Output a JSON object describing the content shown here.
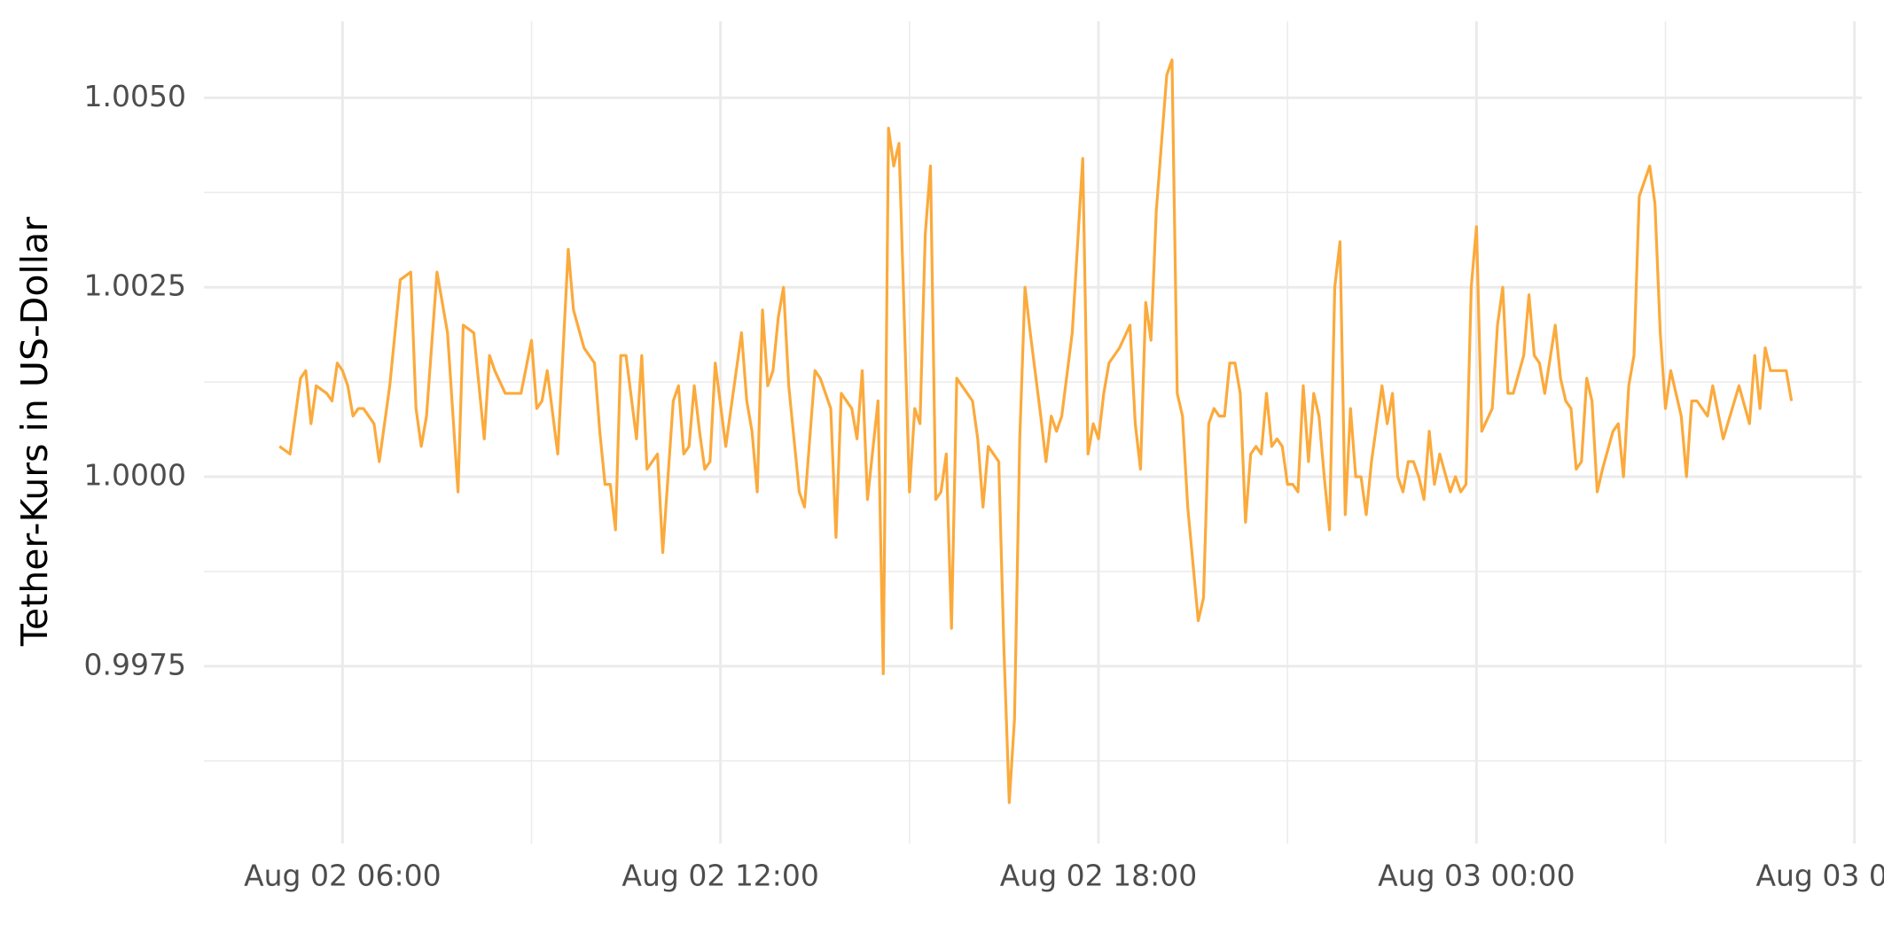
{
  "chart_data": {
    "type": "line",
    "y_label": "Tether-Kurs in US-Dollar",
    "color": "#fbaa3c",
    "grid": true,
    "xlim": [
      "Aug 02 03:48",
      "Aug 03 06:07"
    ],
    "xticks": [
      "Aug 02 06:00",
      "Aug 02 12:00",
      "Aug 02 18:00",
      "Aug 03 00:00",
      "Aug 03 06:00"
    ],
    "ylim": [
      0.99516,
      1.00601
    ],
    "yticks": [
      {
        "value": 0.9975,
        "label": "0.9975"
      },
      {
        "value": 1,
        "label": "1.0000"
      },
      {
        "value": 1.0025,
        "label": "1.0025"
      },
      {
        "value": 1.005,
        "label": "1.0050"
      }
    ],
    "x": [
      "Aug 02 05:00",
      "Aug 02 05:10",
      "Aug 02 05:20",
      "Aug 02 05:25",
      "Aug 02 05:30",
      "Aug 02 05:35",
      "Aug 02 05:45",
      "Aug 02 05:50",
      "Aug 02 05:55",
      "Aug 02 06:00",
      "Aug 02 06:05",
      "Aug 02 06:10",
      "Aug 02 06:15",
      "Aug 02 06:20",
      "Aug 02 06:30",
      "Aug 02 06:35",
      "Aug 02 06:45",
      "Aug 02 06:55",
      "Aug 02 07:05",
      "Aug 02 07:10",
      "Aug 02 07:15",
      "Aug 02 07:20",
      "Aug 02 07:30",
      "Aug 02 07:40",
      "Aug 02 07:50",
      "Aug 02 07:55",
      "Aug 02 08:05",
      "Aug 02 08:15",
      "Aug 02 08:20",
      "Aug 02 08:25",
      "Aug 02 08:35",
      "Aug 02 08:40",
      "Aug 02 08:50",
      "Aug 02 09:00",
      "Aug 02 09:05",
      "Aug 02 09:10",
      "Aug 02 09:15",
      "Aug 02 09:25",
      "Aug 02 09:35",
      "Aug 02 09:40",
      "Aug 02 09:50",
      "Aug 02 10:00",
      "Aug 02 10:05",
      "Aug 02 10:10",
      "Aug 02 10:15",
      "Aug 02 10:20",
      "Aug 02 10:25",
      "Aug 02 10:30",
      "Aug 02 10:40",
      "Aug 02 10:45",
      "Aug 02 10:50",
      "Aug 02 11:00",
      "Aug 02 11:05",
      "Aug 02 11:15",
      "Aug 02 11:20",
      "Aug 02 11:25",
      "Aug 02 11:30",
      "Aug 02 11:35",
      "Aug 02 11:40",
      "Aug 02 11:45",
      "Aug 02 11:50",
      "Aug 02 11:55",
      "Aug 02 12:05",
      "Aug 02 12:10",
      "Aug 02 12:20",
      "Aug 02 12:25",
      "Aug 02 12:30",
      "Aug 02 12:35",
      "Aug 02 12:40",
      "Aug 02 12:45",
      "Aug 02 12:50",
      "Aug 02 12:55",
      "Aug 02 13:00",
      "Aug 02 13:05",
      "Aug 02 13:15",
      "Aug 02 13:20",
      "Aug 02 13:30",
      "Aug 02 13:35",
      "Aug 02 13:45",
      "Aug 02 13:50",
      "Aug 02 13:55",
      "Aug 02 14:05",
      "Aug 02 14:10",
      "Aug 02 14:15",
      "Aug 02 14:20",
      "Aug 02 14:30",
      "Aug 02 14:35",
      "Aug 02 14:40",
      "Aug 02 14:45",
      "Aug 02 14:50",
      "Aug 02 15:00",
      "Aug 02 15:05",
      "Aug 02 15:10",
      "Aug 02 15:15",
      "Aug 02 15:20",
      "Aug 02 15:25",
      "Aug 02 15:30",
      "Aug 02 15:35",
      "Aug 02 15:40",
      "Aug 02 15:45",
      "Aug 02 15:55",
      "Aug 02 16:00",
      "Aug 02 16:05",
      "Aug 02 16:10",
      "Aug 02 16:15",
      "Aug 02 16:25",
      "Aug 02 16:30",
      "Aug 02 16:35",
      "Aug 02 16:40",
      "Aug 02 16:45",
      "Aug 02 16:50",
      "Aug 02 16:55",
      "Aug 02 17:05",
      "Aug 02 17:10",
      "Aug 02 17:15",
      "Aug 02 17:20",
      "Aug 02 17:25",
      "Aug 02 17:35",
      "Aug 02 17:45",
      "Aug 02 17:50",
      "Aug 02 17:55",
      "Aug 02 18:00",
      "Aug 02 18:05",
      "Aug 02 18:10",
      "Aug 02 18:20",
      "Aug 02 18:30",
      "Aug 02 18:35",
      "Aug 02 18:40",
      "Aug 02 18:45",
      "Aug 02 18:50",
      "Aug 02 18:55",
      "Aug 02 19:05",
      "Aug 02 19:10",
      "Aug 02 19:15",
      "Aug 02 19:20",
      "Aug 02 19:25",
      "Aug 02 19:35",
      "Aug 02 19:40",
      "Aug 02 19:45",
      "Aug 02 19:50",
      "Aug 02 19:55",
      "Aug 02 20:00",
      "Aug 02 20:05",
      "Aug 02 20:10",
      "Aug 02 20:15",
      "Aug 02 20:20",
      "Aug 02 20:25",
      "Aug 02 20:30",
      "Aug 02 20:35",
      "Aug 02 20:40",
      "Aug 02 20:45",
      "Aug 02 20:50",
      "Aug 02 20:55",
      "Aug 02 21:00",
      "Aug 02 21:05",
      "Aug 02 21:10",
      "Aug 02 21:15",
      "Aug 02 21:20",
      "Aug 02 21:25",
      "Aug 02 21:30",
      "Aug 02 21:35",
      "Aug 02 21:40",
      "Aug 02 21:45",
      "Aug 02 21:50",
      "Aug 02 21:55",
      "Aug 02 22:00",
      "Aug 02 22:05",
      "Aug 02 22:10",
      "Aug 02 22:15",
      "Aug 02 22:20",
      "Aug 02 22:30",
      "Aug 02 22:35",
      "Aug 02 22:40",
      "Aug 02 22:45",
      "Aug 02 22:50",
      "Aug 02 22:55",
      "Aug 02 23:00",
      "Aug 02 23:05",
      "Aug 02 23:10",
      "Aug 02 23:15",
      "Aug 02 23:20",
      "Aug 02 23:25",
      "Aug 02 23:35",
      "Aug 02 23:40",
      "Aug 02 23:45",
      "Aug 02 23:50",
      "Aug 02 23:55",
      "Aug 03 00:00",
      "Aug 03 00:05",
      "Aug 03 00:15",
      "Aug 03 00:20",
      "Aug 03 00:25",
      "Aug 03 00:30",
      "Aug 03 00:35",
      "Aug 03 00:45",
      "Aug 03 00:50",
      "Aug 03 00:55",
      "Aug 03 01:00",
      "Aug 03 01:05",
      "Aug 03 01:15",
      "Aug 03 01:20",
      "Aug 03 01:25",
      "Aug 03 01:30",
      "Aug 03 01:35",
      "Aug 03 01:40",
      "Aug 03 01:45",
      "Aug 03 01:50",
      "Aug 03 01:55",
      "Aug 03 02:00",
      "Aug 03 02:10",
      "Aug 03 02:15",
      "Aug 03 02:20",
      "Aug 03 02:25",
      "Aug 03 02:30",
      "Aug 03 02:35",
      "Aug 03 02:45",
      "Aug 03 02:50",
      "Aug 03 02:55",
      "Aug 03 03:00",
      "Aug 03 03:05",
      "Aug 03 03:15",
      "Aug 03 03:20",
      "Aug 03 03:25",
      "Aug 03 03:30",
      "Aug 03 03:40",
      "Aug 03 03:45",
      "Aug 03 03:55",
      "Aug 03 04:10",
      "Aug 03 04:20",
      "Aug 03 04:25",
      "Aug 03 04:30",
      "Aug 03 04:35",
      "Aug 03 04:40",
      "Aug 03 04:45",
      "Aug 03 04:55",
      "Aug 03 05:00"
    ],
    "values": [
      1.0004,
      1.0003,
      1.0013,
      1.0014,
      1.0007,
      1.0012,
      1.0011,
      1.001,
      1.0015,
      1.0014,
      1.0012,
      1.0008,
      1.0009,
      1.0009,
      1.0007,
      1.0002,
      1.0012,
      1.0026,
      1.0027,
      1.0009,
      1.0004,
      1.0008,
      1.0027,
      1.0019,
      0.9998,
      1.002,
      1.0019,
      1.0005,
      1.0016,
      1.0014,
      1.0011,
      1.0011,
      1.0011,
      1.0018,
      1.0009,
      1.001,
      1.0014,
      1.0003,
      1.003,
      1.0022,
      1.0017,
      1.0015,
      1.0006,
      0.9999,
      0.9999,
      0.9993,
      1.0016,
      1.0016,
      1.0005,
      1.0016,
      1.0001,
      1.0003,
      0.999,
      1.001,
      1.0012,
      1.0003,
      1.0004,
      1.0012,
      1.0006,
      1.0001,
      1.0002,
      1.0015,
      1.0004,
      1.0009,
      1.0019,
      1.001,
      1.0006,
      0.9998,
      1.0022,
      1.0012,
      1.0014,
      1.0021,
      1.0025,
      1.0012,
      0.9998,
      0.9996,
      1.0014,
      1.0013,
      1.0009,
      0.9992,
      1.0011,
      1.0009,
      1.0005,
      1.0014,
      0.9997,
      1.001,
      0.9974,
      1.0046,
      1.0041,
      1.0044,
      0.9998,
      1.0009,
      1.0007,
      1.0032,
      1.0041,
      0.9997,
      0.9998,
      1.0003,
      0.998,
      1.0013,
      1.0011,
      1.001,
      1.0005,
      0.9996,
      1.0004,
      1.0002,
      0.9977,
      0.9957,
      0.9968,
      1.0005,
      1.0025,
      1.0019,
      1.0008,
      1.0002,
      1.0008,
      1.0006,
      1.0008,
      1.0019,
      1.0042,
      1.0003,
      1.0007,
      1.0005,
      1.0011,
      1.0015,
      1.0017,
      1.002,
      1.0007,
      1.0001,
      1.0023,
      1.0018,
      1.0035,
      1.0053,
      1.0055,
      1.0011,
      1.0008,
      0.9996,
      0.9981,
      0.9984,
      1.0007,
      1.0009,
      1.0008,
      1.0008,
      1.0015,
      1.0015,
      1.0011,
      0.9994,
      1.0003,
      1.0004,
      1.0003,
      1.0011,
      1.0004,
      1.0005,
      1.0004,
      0.9999,
      0.9999,
      0.9998,
      1.0012,
      1.0002,
      1.0011,
      1.0008,
      1.0,
      0.9993,
      1.0025,
      1.0031,
      0.9995,
      1.0009,
      1.0,
      1.0,
      0.9995,
      1.0002,
      1.0012,
      1.0007,
      1.0011,
      1.0,
      0.9998,
      1.0002,
      1.0002,
      1.0,
      0.9997,
      1.0006,
      0.9999,
      1.0003,
      0.9998,
      1.0,
      0.9998,
      0.9999,
      1.0025,
      1.0033,
      1.0006,
      1.0009,
      1.002,
      1.0025,
      1.0011,
      1.0011,
      1.0016,
      1.0024,
      1.0016,
      1.0015,
      1.0011,
      1.002,
      1.0013,
      1.001,
      1.0009,
      1.0001,
      1.0002,
      1.0013,
      1.001,
      0.9998,
      1.0001,
      1.0006,
      1.0007,
      1.0,
      1.0012,
      1.0016,
      1.0037,
      1.0041,
      1.0036,
      1.0019,
      1.0009,
      1.0014,
      1.0008,
      1.0,
      1.001,
      1.001,
      1.0008,
      1.0012,
      1.0005,
      1.0012,
      1.0007,
      1.0016,
      1.0009,
      1.0017,
      1.0014,
      1.0014,
      1.0014,
      1.001
    ]
  }
}
